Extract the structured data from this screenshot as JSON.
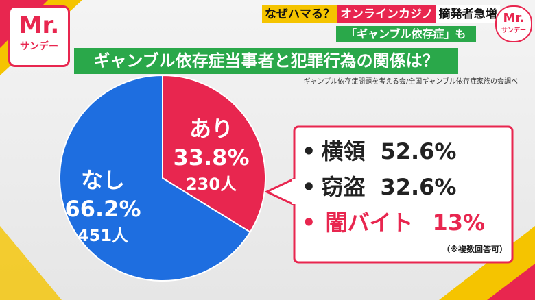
{
  "logo": {
    "brand": "Mr.",
    "show": "サンデー"
  },
  "headline": {
    "tag": "なぜハマる？",
    "topic": "オンラインカジノ",
    "rest": "摘発者急増",
    "sub": "「ギャンブル依存症」も"
  },
  "chart_data": {
    "type": "pie",
    "title": "ギャンブル依存症当事者と犯罪行為の関係は？",
    "source": "ギャンブル依存症問題を考える会/全国ギャンブル依存症家族の会調べ",
    "categories": [
      "あり",
      "なし"
    ],
    "values": [
      33.8,
      66.2
    ],
    "value_labels": [
      "33.8%",
      "66.2%"
    ],
    "counts": [
      230,
      451
    ],
    "count_labels": [
      "230人",
      "451人"
    ],
    "colors": [
      "#e8264f",
      "#1e6ee0"
    ]
  },
  "callout": {
    "items": [
      {
        "label": "横領",
        "value": "52.6%"
      },
      {
        "label": "窃盗",
        "value": "32.6%"
      },
      {
        "label": "闇バイト",
        "value": "13%"
      }
    ],
    "note": "（※複数回答可）"
  }
}
